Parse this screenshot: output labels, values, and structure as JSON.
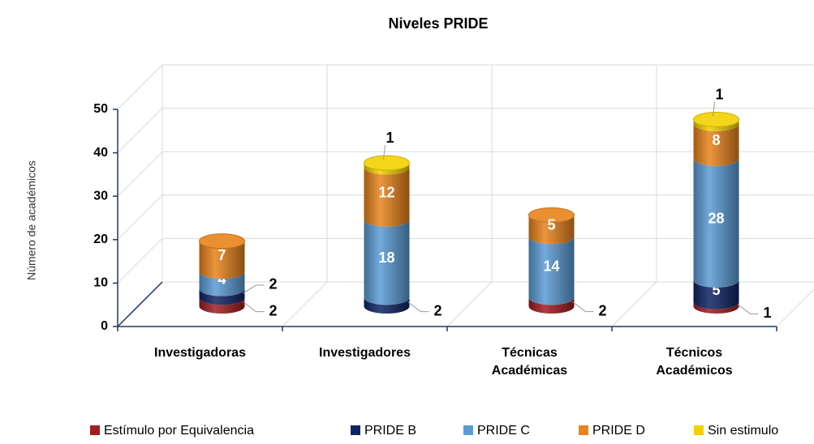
{
  "chart_data": {
    "type": "bar3d",
    "title": "Niveles PRIDE",
    "y_label": "Número de académicos",
    "categories": [
      "Investigadoras",
      "Investigadores",
      "Técnicas Académicas",
      "Técnicos Académicos"
    ],
    "stacked": true,
    "series": [
      {
        "name": "Estímulo por Equivalencia",
        "color": "#a11d22",
        "values": [
          2,
          null,
          2,
          1
        ]
      },
      {
        "name": "PRIDE B",
        "color": "#0f2465",
        "values": [
          2,
          2,
          null,
          5
        ]
      },
      {
        "name": "PRIDE C",
        "color": "#5b9bd5",
        "values": [
          4,
          18,
          14,
          28
        ]
      },
      {
        "name": "PRIDE D",
        "color": "#e8841c",
        "values": [
          7,
          12,
          5,
          8
        ]
      },
      {
        "name": "Sin estimulo",
        "color": "#f2d000",
        "values": [
          null,
          1,
          null,
          1
        ]
      }
    ],
    "ylim": [
      0,
      50
    ],
    "yticks": [
      0,
      10,
      20,
      30,
      40,
      50
    ],
    "grid": true,
    "legend": "bottom"
  }
}
